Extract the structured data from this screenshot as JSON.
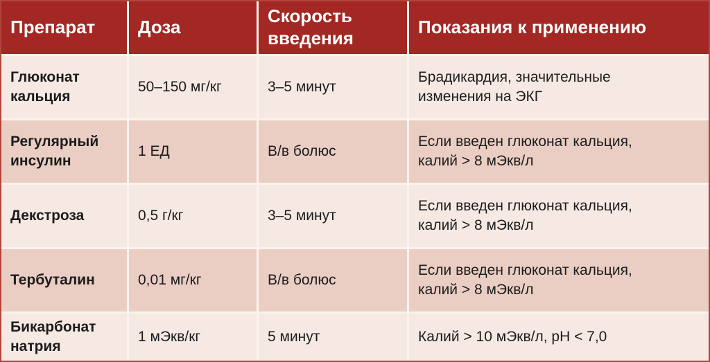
{
  "table": {
    "columns": [
      {
        "label": "Препарат"
      },
      {
        "label": "Доза"
      },
      {
        "label": "Скорость введения"
      },
      {
        "label": "Показания к применению"
      }
    ],
    "rows": [
      {
        "drug": "Глюконат\nкальция",
        "dose": "50–150 мг/кг",
        "rate": "3–5 минут",
        "indication": "Брадикардия, значительные\nизменения на ЭКГ"
      },
      {
        "drug": "Регулярный\nинсулин",
        "dose": "1 ЕД",
        "rate": "В/в болюс",
        "indication": "Если введен глюконат кальция,\nкалий > 8 мЭкв/л"
      },
      {
        "drug": "Декстроза",
        "dose": "0,5 г/кг",
        "rate": "3–5 минут",
        "indication": "Если введен глюконат кальция,\nкалий > 8 мЭкв/л"
      },
      {
        "drug": "Тербуталин",
        "dose": "0,01 мг/кг",
        "rate": "В/в болюс",
        "indication": "Если введен глюконат кальция,\nкалий > 8 мЭкв/л"
      },
      {
        "drug": "Бикарбонат\nнатрия",
        "dose": "1 мЭкв/кг",
        "rate": "5 минут",
        "indication": "Калий > 10 мЭкв/л, pH < 7,0"
      }
    ]
  },
  "colors": {
    "header_bg": "#A32723",
    "header_text": "#FFFFFF",
    "row_light": "#F6E9E4",
    "row_dark": "#EACEC4",
    "divider": "#FBF3EF",
    "outer_border": "#B0453C",
    "body_text": "#1C1C1C"
  }
}
